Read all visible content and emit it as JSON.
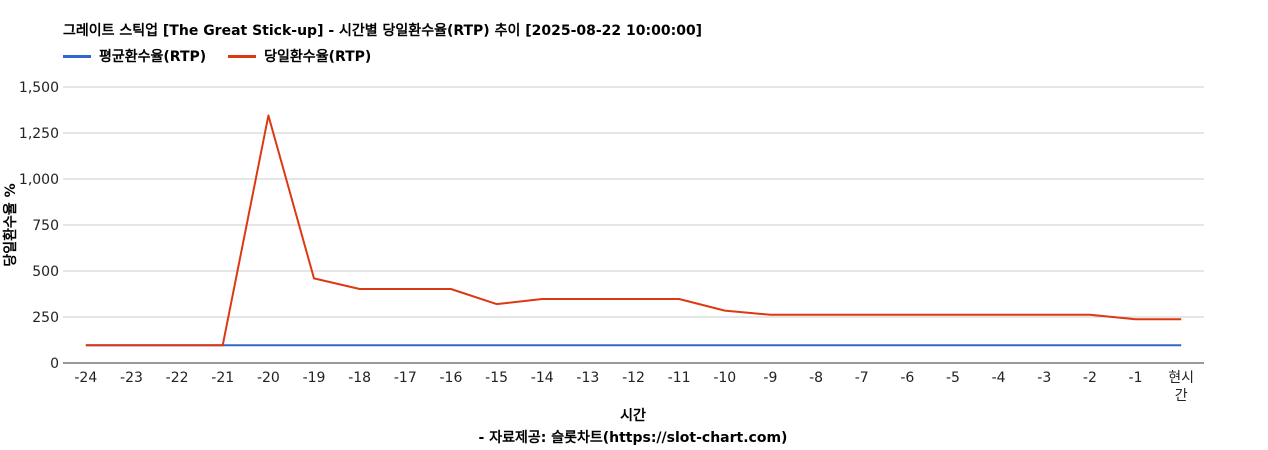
{
  "chart_data": {
    "type": "line",
    "title": "그레이트 스틱업 [The Great Stick-up] - 시간별 당일환수율(RTP) 추이 [2025-08-22 10:00:00]",
    "xlabel": "시간",
    "ylabel": "당일환수율 %",
    "source": "- 자료제공: 슬롯차트(https://slot-chart.com)",
    "categories": [
      "-24",
      "-23",
      "-22",
      "-21",
      "-20",
      "-19",
      "-18",
      "-17",
      "-16",
      "-15",
      "-14",
      "-13",
      "-12",
      "-11",
      "-10",
      "-9",
      "-8",
      "-7",
      "-6",
      "-5",
      "-4",
      "-3",
      "-2",
      "-1",
      "현시간"
    ],
    "y_ticks": [
      "0",
      "250",
      "500",
      "750",
      "1,000",
      "1,250",
      "1,500"
    ],
    "ylim": [
      0,
      1500
    ],
    "grid": true,
    "legend_position": "top-left",
    "series": [
      {
        "name": "평균환수율(RTP)",
        "color": "#3366cc",
        "values": [
          96,
          96,
          96,
          96,
          96,
          96,
          96,
          96,
          96,
          96,
          96,
          96,
          96,
          96,
          96,
          96,
          96,
          96,
          96,
          96,
          96,
          96,
          96,
          96,
          96
        ]
      },
      {
        "name": "당일환수율(RTP)",
        "color": "#dc3912",
        "values": [
          96,
          96,
          96,
          96,
          1345,
          460,
          402,
          402,
          402,
          320,
          348,
          348,
          348,
          348,
          285,
          262,
          262,
          262,
          262,
          262,
          262,
          262,
          262,
          238,
          238
        ]
      }
    ]
  }
}
